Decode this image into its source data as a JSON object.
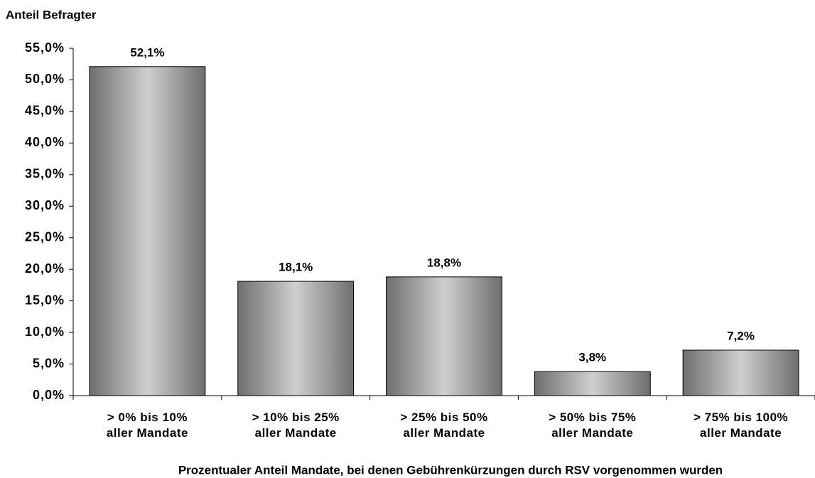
{
  "chart_data": {
    "type": "bar",
    "y_label": "Anteil Befragter",
    "x_label": "Prozentualer Anteil Mandate, bei denen Gebührenkürzungen durch RSV vorgenommen wurden",
    "categories": [
      "> 0% bis 10%\naller Mandate",
      "> 10% bis 25%\naller Mandate",
      "> 25% bis 50%\naller Mandate",
      "> 50% bis 75%\naller Mandate",
      "> 75% bis 100%\naller Mandate"
    ],
    "values": [
      52.1,
      18.1,
      18.8,
      3.8,
      7.2
    ],
    "value_labels": [
      "52,1%",
      "18,1%",
      "18,8%",
      "3,8%",
      "7,2%"
    ],
    "ylim": [
      0,
      55
    ],
    "yticks": [
      {
        "value": 0,
        "label": "0,0%"
      },
      {
        "value": 5,
        "label": "5,0%"
      },
      {
        "value": 10,
        "label": "10,0%"
      },
      {
        "value": 15,
        "label": "15,0%"
      },
      {
        "value": 20,
        "label": "20,0%"
      },
      {
        "value": 25,
        "label": "25,0%"
      },
      {
        "value": 30,
        "label": "30,0%"
      },
      {
        "value": 35,
        "label": "35,0%"
      },
      {
        "value": 40,
        "label": "40,0%"
      },
      {
        "value": 45,
        "label": "45,0%"
      },
      {
        "value": 50,
        "label": "50,0%"
      },
      {
        "value": 55,
        "label": "55,0%"
      }
    ],
    "grid": false
  }
}
